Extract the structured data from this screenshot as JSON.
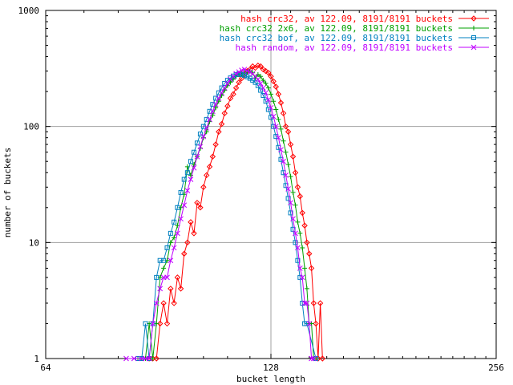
{
  "chart_data": {
    "type": "line",
    "xlabel": "bucket length",
    "ylabel": "number of buckets",
    "x_scale": "log2",
    "y_scale": "log10",
    "xlim": [
      64,
      256
    ],
    "ylim": [
      1,
      1000
    ],
    "x_ticks": [
      "64",
      "128",
      "256"
    ],
    "y_ticks": [
      "1",
      "10",
      "100",
      "1000"
    ],
    "grid": true,
    "legend_position": "top-right",
    "series": [
      {
        "name": "hash crc32, av 122.09, 8191/8191 buckets",
        "color": "#ff0000",
        "marker": "diamond",
        "points": [
          [
            88,
            1
          ],
          [
            89,
            1
          ],
          [
            90,
            1
          ],
          [
            91,
            2
          ],
          [
            92,
            3
          ],
          [
            93,
            2
          ],
          [
            94,
            4
          ],
          [
            95,
            3
          ],
          [
            96,
            5
          ],
          [
            97,
            4
          ],
          [
            98,
            8
          ],
          [
            99,
            10
          ],
          [
            100,
            15
          ],
          [
            101,
            12
          ],
          [
            102,
            22
          ],
          [
            103,
            20
          ],
          [
            104,
            30
          ],
          [
            105,
            38
          ],
          [
            106,
            45
          ],
          [
            107,
            55
          ],
          [
            108,
            70
          ],
          [
            109,
            90
          ],
          [
            110,
            105
          ],
          [
            111,
            130
          ],
          [
            112,
            150
          ],
          [
            113,
            175
          ],
          [
            114,
            190
          ],
          [
            115,
            215
          ],
          [
            116,
            240
          ],
          [
            117,
            260
          ],
          [
            118,
            280
          ],
          [
            119,
            300
          ],
          [
            120,
            310
          ],
          [
            121,
            330
          ],
          [
            122,
            320
          ],
          [
            123,
            335
          ],
          [
            124,
            330
          ],
          [
            125,
            310
          ],
          [
            126,
            300
          ],
          [
            127,
            290
          ],
          [
            128,
            270
          ],
          [
            129,
            245
          ],
          [
            130,
            220
          ],
          [
            131,
            190
          ],
          [
            132,
            160
          ],
          [
            133,
            130
          ],
          [
            134,
            100
          ],
          [
            135,
            90
          ],
          [
            136,
            70
          ],
          [
            137,
            55
          ],
          [
            138,
            40
          ],
          [
            139,
            30
          ],
          [
            140,
            25
          ],
          [
            141,
            18
          ],
          [
            142,
            14
          ],
          [
            143,
            10
          ],
          [
            144,
            8
          ],
          [
            145,
            6
          ],
          [
            146,
            3
          ],
          [
            147,
            2
          ],
          [
            148,
            1
          ],
          [
            149,
            3
          ],
          [
            150,
            1
          ]
        ]
      },
      {
        "name": "hash crc32 2x6, av 122.09, 8191/8191 buckets",
        "color": "#00a000",
        "marker": "plus",
        "points": [
          [
            85,
            1
          ],
          [
            86,
            1
          ],
          [
            87,
            1
          ],
          [
            88,
            2
          ],
          [
            89,
            1
          ],
          [
            90,
            2
          ],
          [
            91,
            5
          ],
          [
            92,
            6
          ],
          [
            93,
            7
          ],
          [
            94,
            10
          ],
          [
            95,
            11
          ],
          [
            96,
            14
          ],
          [
            97,
            20
          ],
          [
            98,
            26
          ],
          [
            99,
            45
          ],
          [
            100,
            38
          ],
          [
            101,
            47
          ],
          [
            102,
            55
          ],
          [
            103,
            65
          ],
          [
            104,
            80
          ],
          [
            105,
            90
          ],
          [
            106,
            110
          ],
          [
            107,
            125
          ],
          [
            108,
            145
          ],
          [
            109,
            165
          ],
          [
            110,
            185
          ],
          [
            111,
            205
          ],
          [
            112,
            225
          ],
          [
            113,
            240
          ],
          [
            114,
            255
          ],
          [
            115,
            270
          ],
          [
            116,
            280
          ],
          [
            117,
            285
          ],
          [
            118,
            290
          ],
          [
            119,
            295
          ],
          [
            120,
            300
          ],
          [
            121,
            290
          ],
          [
            122,
            260
          ],
          [
            123,
            280
          ],
          [
            124,
            270
          ],
          [
            125,
            250
          ],
          [
            126,
            235
          ],
          [
            127,
            215
          ],
          [
            128,
            190
          ],
          [
            129,
            165
          ],
          [
            130,
            140
          ],
          [
            131,
            115
          ],
          [
            132,
            95
          ],
          [
            133,
            75
          ],
          [
            134,
            60
          ],
          [
            135,
            47
          ],
          [
            136,
            37
          ],
          [
            137,
            27
          ],
          [
            138,
            21
          ],
          [
            139,
            15
          ],
          [
            140,
            12
          ],
          [
            141,
            9
          ],
          [
            142,
            6
          ],
          [
            143,
            4
          ],
          [
            144,
            2
          ],
          [
            145,
            2
          ],
          [
            146,
            1
          ],
          [
            147,
            1
          ]
        ]
      },
      {
        "name": "hash crc32 bof, av 122.09, 8191/8191 buckets",
        "color": "#0080c0",
        "marker": "square",
        "points": [
          [
            85,
            1
          ],
          [
            86,
            1
          ],
          [
            87,
            2
          ],
          [
            88,
            1
          ],
          [
            89,
            2
          ],
          [
            90,
            5
          ],
          [
            91,
            7
          ],
          [
            92,
            7
          ],
          [
            93,
            9
          ],
          [
            94,
            12
          ],
          [
            95,
            15
          ],
          [
            96,
            20
          ],
          [
            97,
            27
          ],
          [
            98,
            35
          ],
          [
            99,
            40
          ],
          [
            100,
            50
          ],
          [
            101,
            60
          ],
          [
            102,
            72
          ],
          [
            103,
            86
          ],
          [
            104,
            100
          ],
          [
            105,
            115
          ],
          [
            106,
            135
          ],
          [
            107,
            155
          ],
          [
            108,
            175
          ],
          [
            109,
            195
          ],
          [
            110,
            215
          ],
          [
            111,
            235
          ],
          [
            112,
            250
          ],
          [
            113,
            262
          ],
          [
            114,
            272
          ],
          [
            115,
            280
          ],
          [
            116,
            285
          ],
          [
            117,
            280
          ],
          [
            118,
            275
          ],
          [
            119,
            268
          ],
          [
            120,
            260
          ],
          [
            121,
            250
          ],
          [
            122,
            240
          ],
          [
            123,
            225
          ],
          [
            124,
            205
          ],
          [
            125,
            185
          ],
          [
            126,
            165
          ],
          [
            127,
            140
          ],
          [
            128,
            120
          ],
          [
            129,
            100
          ],
          [
            130,
            82
          ],
          [
            131,
            66
          ],
          [
            132,
            52
          ],
          [
            133,
            40
          ],
          [
            134,
            31
          ],
          [
            135,
            24
          ],
          [
            136,
            18
          ],
          [
            137,
            13
          ],
          [
            138,
            10
          ],
          [
            139,
            7
          ],
          [
            140,
            5
          ],
          [
            141,
            3
          ],
          [
            142,
            2
          ],
          [
            143,
            2
          ],
          [
            147,
            1
          ]
        ]
      },
      {
        "name": "hash random, av 122.09, 8191/8191 buckets",
        "color": "#c000ff",
        "marker": "cross",
        "points": [
          [
            82,
            1
          ],
          [
            84,
            1
          ],
          [
            86,
            1
          ],
          [
            87,
            1
          ],
          [
            88,
            1
          ],
          [
            89,
            2
          ],
          [
            90,
            3
          ],
          [
            91,
            4
          ],
          [
            92,
            5
          ],
          [
            93,
            5
          ],
          [
            94,
            7
          ],
          [
            95,
            9
          ],
          [
            96,
            12
          ],
          [
            97,
            16
          ],
          [
            98,
            21
          ],
          [
            99,
            28
          ],
          [
            100,
            35
          ],
          [
            101,
            44
          ],
          [
            102,
            55
          ],
          [
            103,
            67
          ],
          [
            104,
            82
          ],
          [
            105,
            97
          ],
          [
            106,
            115
          ],
          [
            107,
            135
          ],
          [
            108,
            155
          ],
          [
            109,
            175
          ],
          [
            110,
            195
          ],
          [
            111,
            215
          ],
          [
            112,
            235
          ],
          [
            113,
            255
          ],
          [
            114,
            270
          ],
          [
            115,
            285
          ],
          [
            116,
            295
          ],
          [
            117,
            305
          ],
          [
            118,
            310
          ],
          [
            119,
            300
          ],
          [
            120,
            295
          ],
          [
            121,
            285
          ],
          [
            122,
            270
          ],
          [
            123,
            255
          ],
          [
            124,
            235
          ],
          [
            125,
            215
          ],
          [
            126,
            195
          ],
          [
            127,
            170
          ],
          [
            128,
            145
          ],
          [
            129,
            122
          ],
          [
            130,
            100
          ],
          [
            131,
            80
          ],
          [
            132,
            63
          ],
          [
            133,
            50
          ],
          [
            134,
            38
          ],
          [
            135,
            29
          ],
          [
            136,
            22
          ],
          [
            137,
            16
          ],
          [
            138,
            12
          ],
          [
            139,
            9
          ],
          [
            140,
            6
          ],
          [
            141,
            5
          ],
          [
            142,
            3
          ],
          [
            143,
            3
          ],
          [
            144,
            2
          ],
          [
            145,
            1
          ],
          [
            146,
            1
          ]
        ]
      }
    ]
  }
}
